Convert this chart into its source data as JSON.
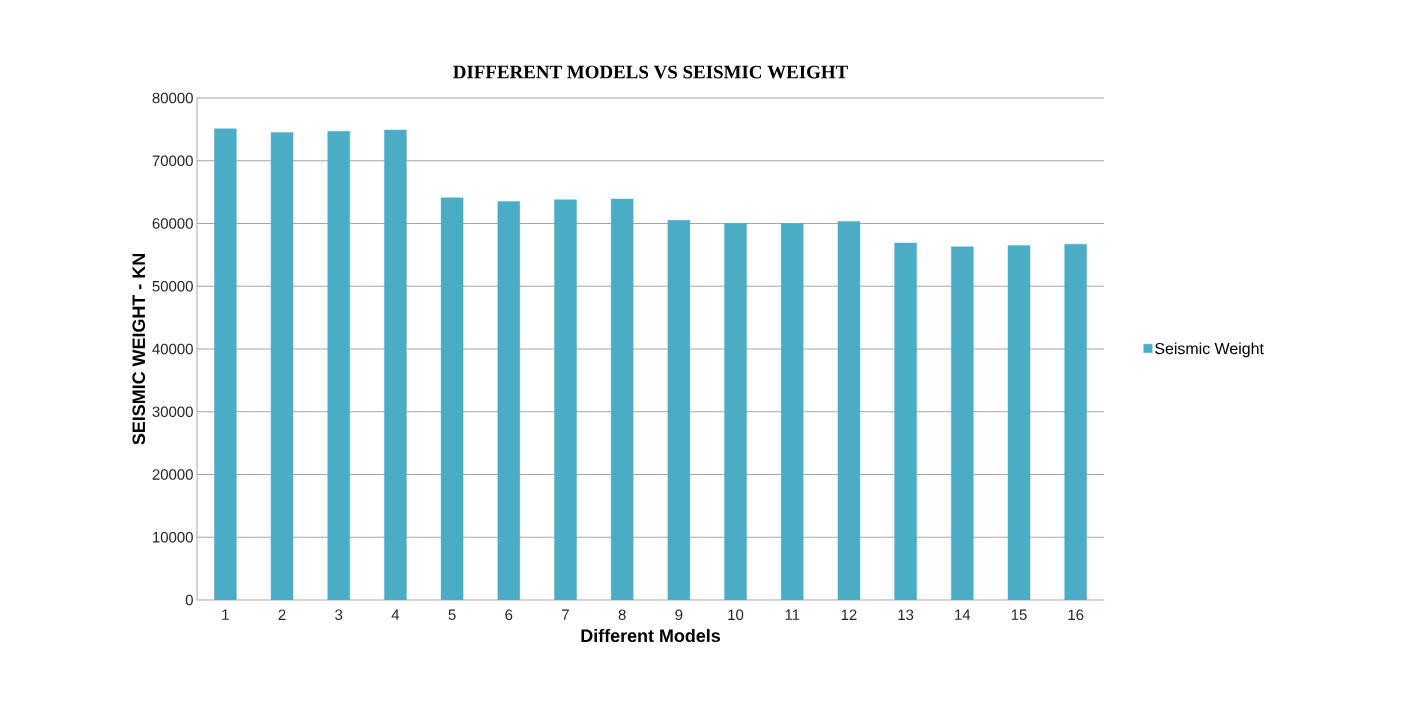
{
  "chart_data": {
    "type": "bar",
    "title": "DIFFERENT MODELS VS SEISMIC WEIGHT",
    "xlabel": "Different Models",
    "ylabel": "SEISMIC WEIGHT - KN",
    "categories": [
      "1",
      "2",
      "3",
      "4",
      "5",
      "6",
      "7",
      "8",
      "9",
      "10",
      "11",
      "12",
      "13",
      "14",
      "15",
      "16"
    ],
    "series": [
      {
        "name": "Seismic Weight",
        "color": "#4bacc6",
        "values": [
          75100,
          74500,
          74700,
          74900,
          64100,
          63500,
          63800,
          63900,
          60500,
          60000,
          60000,
          60300,
          56900,
          56300,
          56500,
          56700
        ]
      }
    ],
    "ylim": [
      0,
      80000
    ],
    "yticks": [
      0,
      10000,
      20000,
      30000,
      40000,
      50000,
      60000,
      70000,
      80000
    ],
    "grid": "y",
    "legend": "right"
  }
}
